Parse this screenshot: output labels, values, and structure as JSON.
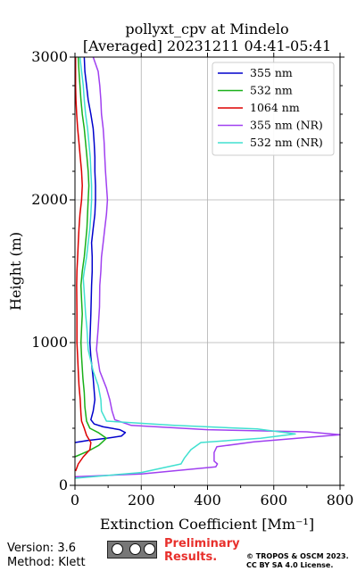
{
  "chart_data": {
    "type": "line",
    "title": [
      "pollyxt_cpv at Mindelo",
      "[Averaged] 20231211 04:41-05:41"
    ],
    "xlabel": "Extinction Coefficient [Mm⁻¹]",
    "ylabel": "Height (m)",
    "xlim": [
      0,
      800
    ],
    "ylim": [
      0,
      3000
    ],
    "xticks": [
      0,
      200,
      400,
      600,
      800
    ],
    "yticks": [
      0,
      1000,
      2000,
      3000
    ],
    "grid": true,
    "legend_position": "top-right",
    "series": [
      {
        "name": "355 nm",
        "color": "#0000cc",
        "points": [
          [
            0,
            300
          ],
          [
            40,
            315
          ],
          [
            95,
            330
          ],
          [
            140,
            345
          ],
          [
            152,
            370
          ],
          [
            135,
            390
          ],
          [
            85,
            410
          ],
          [
            58,
            430
          ],
          [
            48,
            460
          ],
          [
            55,
            520
          ],
          [
            60,
            600
          ],
          [
            55,
            750
          ],
          [
            48,
            900
          ],
          [
            45,
            1000
          ],
          [
            48,
            1200
          ],
          [
            50,
            1400
          ],
          [
            52,
            1500
          ],
          [
            52,
            1600
          ],
          [
            50,
            1700
          ],
          [
            55,
            1800
          ],
          [
            60,
            1900
          ],
          [
            62,
            2000
          ],
          [
            62,
            2100
          ],
          [
            60,
            2200
          ],
          [
            60,
            2300
          ],
          [
            58,
            2400
          ],
          [
            55,
            2500
          ],
          [
            48,
            2600
          ],
          [
            40,
            2700
          ],
          [
            35,
            2800
          ],
          [
            30,
            2900
          ],
          [
            28,
            3000
          ]
        ]
      },
      {
        "name": "532 nm",
        "color": "#1ab01a",
        "points": [
          [
            0,
            200
          ],
          [
            40,
            240
          ],
          [
            72,
            280
          ],
          [
            95,
            330
          ],
          [
            70,
            370
          ],
          [
            45,
            400
          ],
          [
            35,
            450
          ],
          [
            30,
            550
          ],
          [
            28,
            650
          ],
          [
            24,
            750
          ],
          [
            20,
            900
          ],
          [
            18,
            1000
          ],
          [
            20,
            1100
          ],
          [
            22,
            1200
          ],
          [
            20,
            1300
          ],
          [
            18,
            1400
          ],
          [
            22,
            1500
          ],
          [
            28,
            1600
          ],
          [
            32,
            1700
          ],
          [
            36,
            1800
          ],
          [
            38,
            1900
          ],
          [
            40,
            2000
          ],
          [
            42,
            2100
          ],
          [
            40,
            2200
          ],
          [
            36,
            2300
          ],
          [
            32,
            2400
          ],
          [
            28,
            2500
          ],
          [
            22,
            2600
          ],
          [
            18,
            2700
          ],
          [
            15,
            2800
          ],
          [
            12,
            2900
          ],
          [
            10,
            3000
          ]
        ]
      },
      {
        "name": "1064 nm",
        "color": "#dd0000",
        "points": [
          [
            2,
            100
          ],
          [
            10,
            150
          ],
          [
            25,
            200
          ],
          [
            45,
            250
          ],
          [
            48,
            300
          ],
          [
            35,
            350
          ],
          [
            28,
            400
          ],
          [
            20,
            450
          ],
          [
            18,
            500
          ],
          [
            16,
            600
          ],
          [
            12,
            700
          ],
          [
            10,
            800
          ],
          [
            8,
            900
          ],
          [
            6,
            1000
          ],
          [
            6,
            1200
          ],
          [
            5,
            1400
          ],
          [
            6,
            1500
          ],
          [
            8,
            1600
          ],
          [
            10,
            1700
          ],
          [
            12,
            1800
          ],
          [
            15,
            1900
          ],
          [
            20,
            2000
          ],
          [
            22,
            2100
          ],
          [
            20,
            2200
          ],
          [
            16,
            2300
          ],
          [
            12,
            2400
          ],
          [
            8,
            2500
          ],
          [
            5,
            2600
          ],
          [
            3,
            2700
          ],
          [
            2,
            2800
          ],
          [
            2,
            2900
          ],
          [
            2,
            3000
          ]
        ]
      },
      {
        "name": "355 nm (NR)",
        "color": "#a040f0",
        "points": [
          [
            0,
            60
          ],
          [
            200,
            80
          ],
          [
            425,
            130
          ],
          [
            430,
            150
          ],
          [
            420,
            170
          ],
          [
            420,
            230
          ],
          [
            428,
            270
          ],
          [
            540,
            305
          ],
          [
            800,
            355
          ],
          [
            700,
            375
          ],
          [
            400,
            390
          ],
          [
            170,
            420
          ],
          [
            120,
            460
          ],
          [
            112,
            520
          ],
          [
            105,
            600
          ],
          [
            95,
            680
          ],
          [
            75,
            800
          ],
          [
            65,
            950
          ],
          [
            70,
            1100
          ],
          [
            74,
            1250
          ],
          [
            75,
            1400
          ],
          [
            78,
            1500
          ],
          [
            80,
            1600
          ],
          [
            85,
            1700
          ],
          [
            90,
            1800
          ],
          [
            95,
            1900
          ],
          [
            98,
            2000
          ],
          [
            95,
            2100
          ],
          [
            92,
            2200
          ],
          [
            90,
            2300
          ],
          [
            88,
            2400
          ],
          [
            85,
            2500
          ],
          [
            80,
            2600
          ],
          [
            78,
            2700
          ],
          [
            75,
            2800
          ],
          [
            70,
            2900
          ],
          [
            55,
            3000
          ]
        ]
      },
      {
        "name": "532 nm (NR)",
        "color": "#40e0d0",
        "points": [
          [
            0,
            50
          ],
          [
            200,
            90
          ],
          [
            320,
            150
          ],
          [
            330,
            190
          ],
          [
            350,
            250
          ],
          [
            380,
            300
          ],
          [
            560,
            330
          ],
          [
            665,
            360
          ],
          [
            550,
            395
          ],
          [
            300,
            420
          ],
          [
            95,
            450
          ],
          [
            80,
            520
          ],
          [
            78,
            600
          ],
          [
            70,
            700
          ],
          [
            55,
            800
          ],
          [
            40,
            950
          ],
          [
            36,
            1100
          ],
          [
            32,
            1200
          ],
          [
            28,
            1350
          ],
          [
            25,
            1450
          ],
          [
            28,
            1500
          ],
          [
            35,
            1600
          ],
          [
            40,
            1700
          ],
          [
            45,
            1800
          ],
          [
            48,
            1900
          ],
          [
            50,
            2000
          ],
          [
            50,
            2100
          ],
          [
            48,
            2200
          ],
          [
            46,
            2300
          ],
          [
            42,
            2400
          ],
          [
            38,
            2500
          ],
          [
            32,
            2600
          ],
          [
            28,
            2700
          ],
          [
            25,
            2800
          ],
          [
            20,
            2900
          ],
          [
            15,
            3000
          ]
        ]
      }
    ]
  },
  "footer": {
    "version": "Version: 3.6",
    "method": "Method: Klett",
    "preliminary": [
      "Preliminary",
      "Results."
    ],
    "license": [
      "© TROPOS & OSCM 2023.",
      "CC BY SA 4.0 License."
    ]
  },
  "icons": {
    "license_badge": "cc-by-sa-icon"
  }
}
